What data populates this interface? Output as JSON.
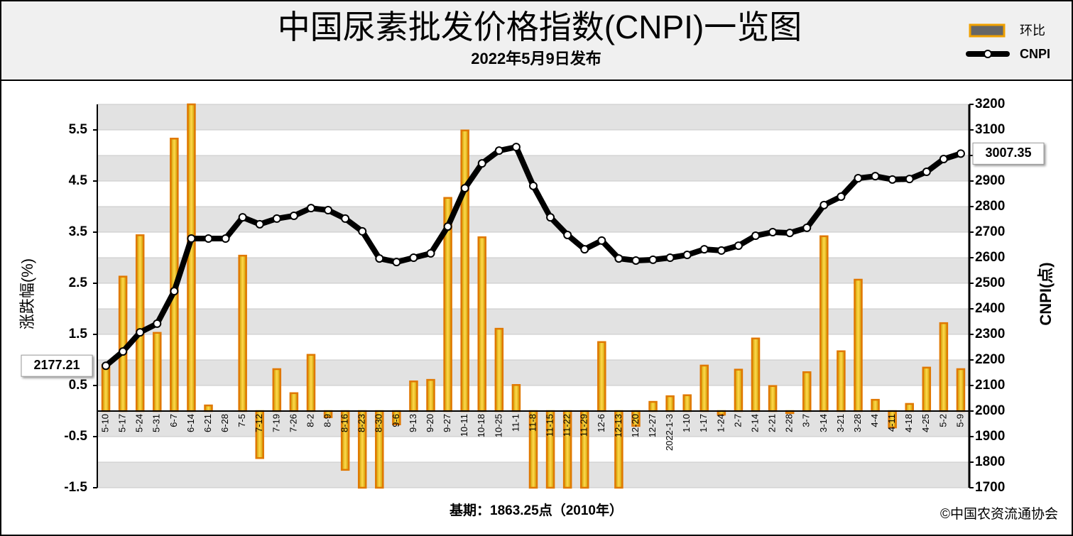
{
  "chart_data": {
    "type": "bar",
    "title": "中国尿素批发价格指数(CNPI)一览图",
    "subtitle": "2022年5月9日发布",
    "y_label": "涨跌幅(%)",
    "y2_label": "CNPI(点)",
    "note": "基期：1863.25点（2010年）",
    "source": "©中国农资流通协会",
    "categories": [
      "5-10",
      "5-17",
      "5-24",
      "5-31",
      "6-7",
      "6-14",
      "6-21",
      "6-28",
      "7-5",
      "7-12",
      "7-19",
      "7-26",
      "8-2",
      "8-9",
      "8-16",
      "8-23",
      "8-30",
      "9-6",
      "9-13",
      "9-20",
      "9-27",
      "10-11",
      "10-18",
      "10-25",
      "11-1",
      "11-8",
      "11-15",
      "11-22",
      "11-29",
      "12-6",
      "12-13",
      "12-20",
      "12-27",
      "2022-1-3",
      "1-10",
      "1-17",
      "1-24",
      "2-7",
      "2-14",
      "2-21",
      "2-28",
      "3-7",
      "3-14",
      "3-21",
      "3-28",
      "4-4",
      "4-11",
      "4-18",
      "4-25",
      "5-2",
      "5-9"
    ],
    "series": [
      {
        "name": "环比",
        "type": "bar",
        "color": "#e07800",
        "values": [
          0.9,
          2.63,
          3.44,
          1.53,
          5.33,
          6.0,
          0.11,
          0,
          3.04,
          -0.92,
          0.82,
          0.35,
          1.1,
          -0.12,
          -1.15,
          -1.5,
          -1.5,
          -0.26,
          0.58,
          0.61,
          4.17,
          5.49,
          3.4,
          1.61,
          0.51,
          -1.5,
          -1.5,
          -1.5,
          -1.5,
          1.35,
          -1.5,
          -0.29,
          0.18,
          0.29,
          0.31,
          0.89,
          -0.07,
          0.81,
          1.42,
          0.49,
          -0.04,
          0.76,
          3.42,
          1.17,
          2.57,
          0.22,
          -0.32,
          0.14,
          0.85,
          1.72,
          0.82
        ]
      },
      {
        "name": "CNPI",
        "type": "line",
        "axis": "y2",
        "color": "#000000",
        "values": [
          2177.21,
          2233,
          2308,
          2342,
          2469,
          2675,
          2675,
          2675,
          2758,
          2731,
          2753,
          2764,
          2794,
          2786,
          2753,
          2703,
          2597,
          2583,
          2600,
          2617,
          2722,
          2872,
          2969,
          3019,
          3033,
          2881,
          2758,
          2689,
          2633,
          2667,
          2597,
          2589,
          2592,
          2600,
          2611,
          2633,
          2628,
          2647,
          2686,
          2700,
          2697,
          2717,
          2806,
          2839,
          2911,
          2919,
          2906,
          2908,
          2936,
          2986,
          3007.35
        ]
      }
    ],
    "ylim": [
      -1.5,
      6.0
    ],
    "yticks": [
      -1.5,
      -0.5,
      0.5,
      1.5,
      2.5,
      3.5,
      4.5,
      5.5
    ],
    "y2lim": [
      1700,
      3200
    ],
    "y2ticks": [
      1700,
      1800,
      1900,
      2000,
      2100,
      2200,
      2300,
      2400,
      2500,
      2600,
      2700,
      2800,
      2900,
      3000,
      3100,
      3200
    ],
    "grid": true
  }
}
